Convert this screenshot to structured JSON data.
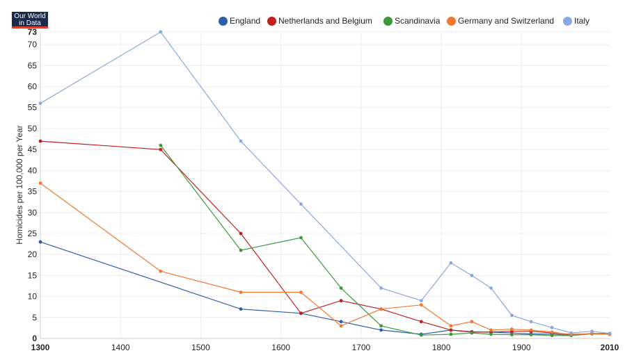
{
  "logo": {
    "line1": "Our World",
    "line2": "in Data"
  },
  "chart_data": {
    "type": "line",
    "title": "",
    "xlabel": "",
    "ylabel": "Homicides per 100,000 per Year",
    "xlim": [
      1300,
      2010
    ],
    "ylim": [
      0,
      73
    ],
    "x_ticks": [
      1300,
      1400,
      1500,
      1600,
      1700,
      1800,
      1900,
      2010
    ],
    "y_ticks": [
      0,
      5,
      10,
      15,
      20,
      25,
      30,
      35,
      40,
      45,
      50,
      55,
      60,
      65,
      70,
      73
    ],
    "grid": true,
    "legend_position": "top",
    "series": [
      {
        "name": "England",
        "color": "#2c5fa8",
        "points": [
          [
            1300,
            23
          ],
          [
            1550,
            7
          ],
          [
            1625,
            6
          ],
          [
            1675,
            4
          ],
          [
            1725,
            2
          ],
          [
            1775,
            1
          ],
          [
            1812,
            2
          ],
          [
            1838,
            1.6
          ],
          [
            1862,
            1.5
          ],
          [
            1888,
            1.3
          ],
          [
            1912,
            1.1
          ],
          [
            1938,
            1
          ],
          [
            1962,
            0.8
          ],
          [
            1988,
            1.2
          ],
          [
            2010,
            1.2
          ]
        ]
      },
      {
        "name": "Netherlands and Belgium",
        "color": "#c0201e",
        "points": [
          [
            1300,
            47
          ],
          [
            1450,
            45
          ],
          [
            1550,
            25
          ],
          [
            1625,
            6
          ],
          [
            1675,
            9
          ],
          [
            1725,
            7
          ],
          [
            1775,
            4
          ],
          [
            1812,
            2
          ],
          [
            1838,
            1.5
          ],
          [
            1862,
            1.5
          ],
          [
            1888,
            1.7
          ],
          [
            1912,
            1.7
          ],
          [
            1938,
            1.3
          ],
          [
            1962,
            1
          ],
          [
            1988,
            1.1
          ],
          [
            2010,
            1
          ]
        ]
      },
      {
        "name": "Scandinavia",
        "color": "#3a9a3a",
        "points": [
          [
            1450,
            46
          ],
          [
            1550,
            21
          ],
          [
            1625,
            24
          ],
          [
            1675,
            12
          ],
          [
            1725,
            3
          ],
          [
            1775,
            0.8
          ],
          [
            1812,
            1
          ],
          [
            1838,
            1.3
          ],
          [
            1862,
            1
          ],
          [
            1888,
            0.9
          ],
          [
            1912,
            0.9
          ],
          [
            1938,
            0.7
          ],
          [
            1962,
            0.7
          ],
          [
            1988,
            1.1
          ],
          [
            2010,
            1
          ]
        ]
      },
      {
        "name": "Germany and Switzerland",
        "color": "#ef7a30",
        "points": [
          [
            1300,
            37
          ],
          [
            1450,
            16
          ],
          [
            1550,
            11
          ],
          [
            1625,
            11
          ],
          [
            1675,
            3
          ],
          [
            1725,
            7
          ],
          [
            1775,
            8
          ],
          [
            1812,
            3
          ],
          [
            1838,
            4
          ],
          [
            1862,
            2
          ],
          [
            1888,
            2.2
          ],
          [
            1912,
            2
          ],
          [
            1938,
            1.5
          ],
          [
            1962,
            0.9
          ],
          [
            1988,
            1.2
          ],
          [
            2010,
            1
          ]
        ]
      },
      {
        "name": "Italy",
        "color": "#8aa8e0",
        "points": [
          [
            1300,
            56
          ],
          [
            1450,
            73
          ],
          [
            1550,
            47
          ],
          [
            1625,
            32
          ],
          [
            1725,
            12
          ],
          [
            1775,
            9
          ],
          [
            1812,
            18
          ],
          [
            1838,
            15
          ],
          [
            1862,
            12
          ],
          [
            1888,
            5.5
          ],
          [
            1912,
            4
          ],
          [
            1938,
            2.6
          ],
          [
            1962,
            1.3
          ],
          [
            1988,
            1.7
          ],
          [
            2010,
            1.2
          ]
        ]
      }
    ]
  }
}
